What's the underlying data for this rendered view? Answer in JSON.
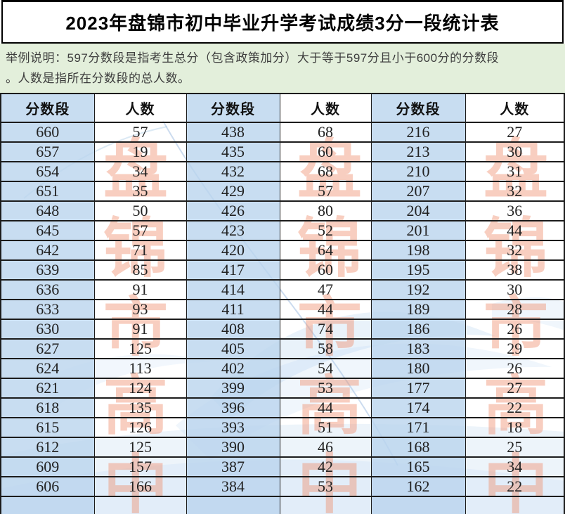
{
  "title": "2023年盘锦市初中毕业升学考试成绩3分一段统计表",
  "note": {
    "line1": "举例说明：597分数段是指考生总分（包含政策加分）大于等于597分且小于600分的分数段",
    "line2": "。人数是指所在分数段的总人数。"
  },
  "table": {
    "headers": [
      "分数段",
      "人数",
      "分数段",
      "人数",
      "分数段",
      "人数"
    ],
    "rows": [
      [
        660,
        57,
        438,
        68,
        216,
        27
      ],
      [
        657,
        19,
        435,
        60,
        213,
        30
      ],
      [
        654,
        34,
        432,
        68,
        210,
        31
      ],
      [
        651,
        35,
        429,
        57,
        207,
        32
      ],
      [
        648,
        50,
        426,
        80,
        204,
        36
      ],
      [
        645,
        57,
        423,
        52,
        201,
        44
      ],
      [
        642,
        71,
        420,
        64,
        198,
        32
      ],
      [
        639,
        85,
        417,
        60,
        195,
        38
      ],
      [
        636,
        91,
        414,
        47,
        192,
        30
      ],
      [
        633,
        93,
        411,
        44,
        189,
        28
      ],
      [
        630,
        91,
        408,
        74,
        186,
        26
      ],
      [
        627,
        125,
        405,
        58,
        183,
        29
      ],
      [
        624,
        113,
        402,
        54,
        180,
        26
      ],
      [
        621,
        124,
        399,
        53,
        177,
        27
      ],
      [
        618,
        135,
        396,
        44,
        174,
        22
      ],
      [
        615,
        126,
        393,
        51,
        171,
        18
      ],
      [
        612,
        125,
        390,
        46,
        168,
        25
      ],
      [
        609,
        157,
        387,
        42,
        165,
        34
      ],
      [
        606,
        166,
        384,
        53,
        162,
        22
      ]
    ]
  },
  "watermark": {
    "text": "盘锦市高中"
  },
  "colors": {
    "band_blue": "rgba(188,214,238,0.82)",
    "note_green": "#e3efdb",
    "grid_color": "#1c1c1c",
    "wm_red": "#ed7950",
    "text_dark": "#222222"
  }
}
